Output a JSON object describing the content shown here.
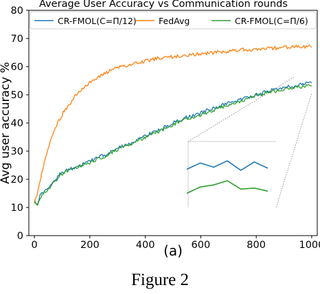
{
  "figure_caption": "Figure 2",
  "panel_label": "(a)",
  "chart_data": {
    "type": "line",
    "title": "Average User Accuracy vs Communication rounds",
    "xlabel": "",
    "ylabel": "Avg user accuracy %",
    "xlim": [
      -20,
      1020
    ],
    "ylim": [
      0,
      80
    ],
    "xticks": [
      0,
      200,
      400,
      600,
      800,
      1000
    ],
    "yticks": [
      0,
      10,
      20,
      30,
      40,
      50,
      60,
      70,
      80
    ],
    "grid": false,
    "legend_position": "top",
    "series": [
      {
        "name": "CR-FMOL(C=Π/12)",
        "color": "#1f77b4",
        "x": [
          0,
          10,
          20,
          30,
          50,
          75,
          100,
          150,
          200,
          250,
          300,
          350,
          400,
          450,
          500,
          550,
          600,
          650,
          700,
          750,
          800,
          850,
          900,
          950,
          1000
        ],
        "y": [
          13,
          10.5,
          14,
          15,
          17,
          20,
          22.5,
          24.5,
          26.5,
          28.5,
          31,
          33,
          35.5,
          37.5,
          40,
          42,
          43.5,
          45.5,
          47,
          48.5,
          50,
          51.5,
          52.5,
          53.5,
          54.5
        ]
      },
      {
        "name": "FedAvg",
        "color": "#ff7f0e",
        "x": [
          0,
          10,
          20,
          30,
          50,
          75,
          100,
          150,
          200,
          250,
          300,
          350,
          400,
          450,
          500,
          550,
          600,
          650,
          700,
          750,
          800,
          850,
          900,
          950,
          1000
        ],
        "y": [
          12,
          14,
          19,
          24,
          31,
          38,
          43,
          50,
          54.5,
          57.5,
          59.5,
          61,
          62,
          63,
          63.5,
          64,
          64.5,
          65,
          65.5,
          66,
          66,
          66.5,
          66.8,
          67,
          67.2
        ]
      },
      {
        "name": "CR-FMOL(C=Π/6)",
        "color": "#2ca02c",
        "x": [
          0,
          10,
          20,
          30,
          50,
          75,
          100,
          150,
          200,
          250,
          300,
          350,
          400,
          450,
          500,
          550,
          600,
          650,
          700,
          750,
          800,
          850,
          900,
          950,
          1000
        ],
        "y": [
          12.5,
          10,
          13.5,
          14.5,
          16.5,
          19.5,
          22,
          24,
          26,
          28,
          30.5,
          32.5,
          35,
          37,
          39.5,
          41.5,
          43,
          44.5,
          46.5,
          48,
          49.5,
          51,
          52,
          53,
          53
        ]
      }
    ]
  },
  "inset": {
    "source_x_range": [
      940,
      1000
    ],
    "source_y_range": [
      50.5,
      56.5
    ],
    "series": [
      {
        "name": "CR-FMOL(C=Π/12)",
        "color": "#1f77b4",
        "x": [
          0,
          1,
          2,
          3,
          4,
          5,
          6
        ],
        "y": [
          54.5,
          55.1,
          54.7,
          55.3,
          54.4,
          55.2,
          54.6
        ]
      },
      {
        "name": "CR-FMOL(C=Π/6)",
        "color": "#2ca02c",
        "x": [
          0,
          1,
          2,
          3,
          4,
          5,
          6
        ],
        "y": [
          52.2,
          52.8,
          53.0,
          53.4,
          52.6,
          52.7,
          52.4
        ]
      }
    ]
  }
}
